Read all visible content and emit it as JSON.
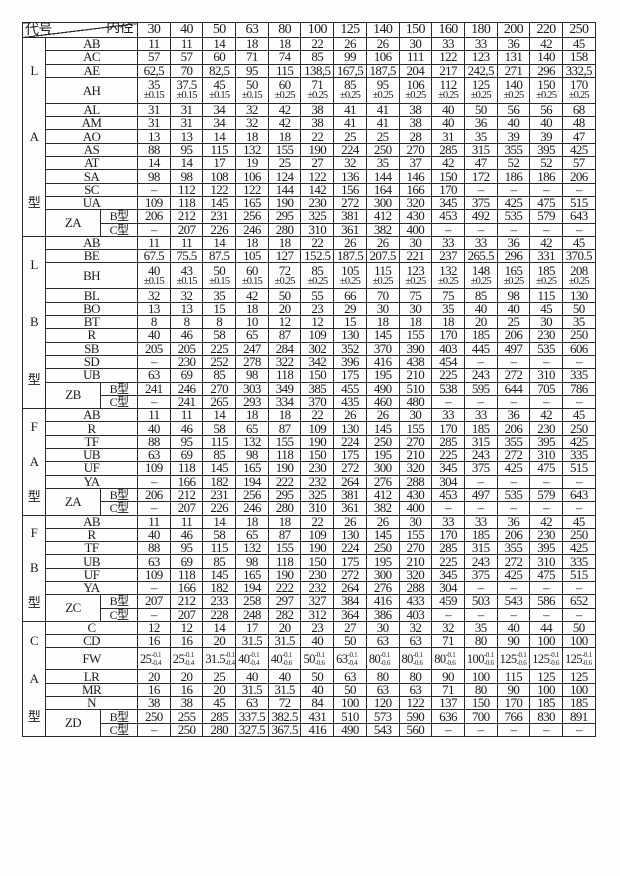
{
  "header": {
    "code_label": "代号",
    "bore_label": "内径",
    "bores": [
      "30",
      "40",
      "50",
      "63",
      "80",
      "100",
      "125",
      "140",
      "150",
      "160",
      "180",
      "200",
      "220",
      "250"
    ]
  },
  "sections": [
    {
      "group_label": [
        "L",
        "A",
        "型"
      ],
      "rows": [
        {
          "code": "AB",
          "values": [
            "11",
            "11",
            "14",
            "18",
            "18",
            "22",
            "26",
            "26",
            "30",
            "33",
            "33",
            "36",
            "42",
            "45"
          ]
        },
        {
          "code": "AC",
          "values": [
            "57",
            "57",
            "60",
            "71",
            "74",
            "85",
            "99",
            "106",
            "111",
            "122",
            "123",
            "131",
            "140",
            "158"
          ]
        },
        {
          "code": "AE",
          "values": [
            "62,5",
            "70",
            "82,5",
            "95",
            "115",
            "138,5",
            "167,5",
            "187,5",
            "204",
            "217",
            "242,5",
            "271",
            "296",
            "332,5"
          ]
        },
        {
          "code": "AH",
          "values": [
            "35",
            "37.5",
            "45",
            "50",
            "60",
            "71",
            "85",
            "95",
            "106",
            "112",
            "125",
            "140",
            "150",
            "170"
          ],
          "tol": [
            "±0.15",
            "±0.15",
            "±0.15",
            "±0.15",
            "±0.25",
            "±0.25",
            "±0.25",
            "±0.25",
            "±0.25",
            "±0.25",
            "±0.25",
            "±0.25",
            "±0.25",
            "±0.25"
          ]
        },
        {
          "code": "AL",
          "values": [
            "31",
            "31",
            "34",
            "32",
            "42",
            "38",
            "41",
            "41",
            "38",
            "40",
            "50",
            "56",
            "56",
            "68"
          ]
        },
        {
          "code": "AM",
          "values": [
            "31",
            "31",
            "34",
            "32",
            "42",
            "38",
            "41",
            "41",
            "38",
            "40",
            "36",
            "40",
            "40",
            "48"
          ]
        },
        {
          "code": "AO",
          "values": [
            "13",
            "13",
            "14",
            "18",
            "18",
            "22",
            "25",
            "25",
            "28",
            "31",
            "35",
            "39",
            "39",
            "47"
          ]
        },
        {
          "code": "AS",
          "values": [
            "88",
            "95",
            "115",
            "132",
            "155",
            "190",
            "224",
            "250",
            "270",
            "285",
            "315",
            "355",
            "395",
            "425"
          ]
        },
        {
          "code": "AT",
          "values": [
            "14",
            "14",
            "17",
            "19",
            "25",
            "27",
            "32",
            "35",
            "37",
            "42",
            "47",
            "52",
            "52",
            "57"
          ]
        },
        {
          "code": "SA",
          "values": [
            "98",
            "98",
            "108",
            "106",
            "124",
            "122",
            "136",
            "144",
            "146",
            "150",
            "172",
            "186",
            "186",
            "206"
          ]
        },
        {
          "code": "SC",
          "values": [
            "–",
            "112",
            "122",
            "122",
            "144",
            "142",
            "156",
            "164",
            "166",
            "170",
            "–",
            "–",
            "–",
            "–"
          ]
        },
        {
          "code": "UA",
          "values": [
            "109",
            "118",
            "145",
            "165",
            "190",
            "230",
            "272",
            "300",
            "320",
            "345",
            "375",
            "425",
            "475",
            "515"
          ]
        },
        {
          "code": "ZA",
          "sub": "B型",
          "values": [
            "206",
            "212",
            "231",
            "256",
            "295",
            "325",
            "381",
            "412",
            "430",
            "453",
            "492",
            "535",
            "579",
            "643"
          ]
        },
        {
          "code": "ZA",
          "sub": "C型",
          "values": [
            "–",
            "207",
            "226",
            "246",
            "280",
            "310",
            "361",
            "382",
            "400",
            "–",
            "–",
            "–",
            "–",
            "–"
          ]
        }
      ]
    },
    {
      "group_label": [
        "L",
        "B",
        "型"
      ],
      "rows": [
        {
          "code": "AB",
          "values": [
            "11",
            "11",
            "14",
            "18",
            "18",
            "22",
            "26",
            "26",
            "30",
            "33",
            "33",
            "36",
            "42",
            "45"
          ]
        },
        {
          "code": "BE",
          "values": [
            "67.5",
            "75.5",
            "87.5",
            "105",
            "127",
            "152.5",
            "187.5",
            "207.5",
            "221",
            "237",
            "265.5",
            "296",
            "331",
            "370.5"
          ]
        },
        {
          "code": "BH",
          "values": [
            "40",
            "43",
            "50",
            "60",
            "72",
            "85",
            "105",
            "115",
            "123",
            "132",
            "148",
            "165",
            "185",
            "208"
          ],
          "tol": [
            "±0.15",
            "±0.15",
            "±0.15",
            "±0.15",
            "±0.25",
            "±0.25",
            "±0.25",
            "±0.25",
            "±0.25",
            "±0.25",
            "±0.25",
            "±0.25",
            "±0.25",
            "±0.25"
          ]
        },
        {
          "code": "BL",
          "values": [
            "32",
            "32",
            "35",
            "42",
            "50",
            "55",
            "66",
            "70",
            "75",
            "75",
            "85",
            "98",
            "115",
            "130"
          ]
        },
        {
          "code": "BO",
          "values": [
            "13",
            "13",
            "15",
            "18",
            "20",
            "23",
            "29",
            "30",
            "30",
            "35",
            "40",
            "40",
            "45",
            "50"
          ]
        },
        {
          "code": "BT",
          "values": [
            "8",
            "8",
            "8",
            "10",
            "12",
            "12",
            "15",
            "18",
            "18",
            "18",
            "20",
            "25",
            "30",
            "35"
          ]
        },
        {
          "code": "R",
          "values": [
            "40",
            "46",
            "58",
            "65",
            "87",
            "109",
            "130",
            "145",
            "155",
            "170",
            "185",
            "206",
            "230",
            "250"
          ]
        },
        {
          "code": "SB",
          "values": [
            "205",
            "205",
            "225",
            "247",
            "284",
            "302",
            "352",
            "370",
            "390",
            "403",
            "445",
            "497",
            "535",
            "606"
          ]
        },
        {
          "code": "SD",
          "values": [
            "–",
            "230",
            "252",
            "278",
            "322",
            "342",
            "396",
            "416",
            "438",
            "454",
            "–",
            "–",
            "–",
            "–"
          ]
        },
        {
          "code": "UB",
          "values": [
            "63",
            "69",
            "85",
            "98",
            "118",
            "150",
            "175",
            "195",
            "210",
            "225",
            "243",
            "272",
            "310",
            "335"
          ]
        },
        {
          "code": "ZB",
          "sub": "B型",
          "values": [
            "241",
            "246",
            "270",
            "303",
            "349",
            "385",
            "455",
            "490",
            "510",
            "538",
            "595",
            "644",
            "705",
            "786"
          ]
        },
        {
          "code": "ZB",
          "sub": "C型",
          "values": [
            "–",
            "241",
            "265",
            "293",
            "334",
            "370",
            "435",
            "460",
            "480",
            "–",
            "–",
            "–",
            "–",
            "–"
          ]
        }
      ]
    },
    {
      "group_label": [
        "F",
        "A",
        "型"
      ],
      "rows": [
        {
          "code": "AB",
          "values": [
            "11",
            "11",
            "14",
            "18",
            "18",
            "22",
            "26",
            "26",
            "30",
            "33",
            "33",
            "36",
            "42",
            "45"
          ]
        },
        {
          "code": "R",
          "values": [
            "40",
            "46",
            "58",
            "65",
            "87",
            "109",
            "130",
            "145",
            "155",
            "170",
            "185",
            "206",
            "230",
            "250"
          ]
        },
        {
          "code": "TF",
          "values": [
            "88",
            "95",
            "115",
            "132",
            "155",
            "190",
            "224",
            "250",
            "270",
            "285",
            "315",
            "355",
            "395",
            "425"
          ]
        },
        {
          "code": "UB",
          "values": [
            "63",
            "69",
            "85",
            "98",
            "118",
            "150",
            "175",
            "195",
            "210",
            "225",
            "243",
            "272",
            "310",
            "335"
          ]
        },
        {
          "code": "UF",
          "values": [
            "109",
            "118",
            "145",
            "165",
            "190",
            "230",
            "272",
            "300",
            "320",
            "345",
            "375",
            "425",
            "475",
            "515"
          ]
        },
        {
          "code": "YA",
          "values": [
            "–",
            "166",
            "182",
            "194",
            "222",
            "232",
            "264",
            "276",
            "288",
            "304",
            "–",
            "–",
            "–",
            "–"
          ]
        },
        {
          "code": "ZA",
          "sub": "B型",
          "values": [
            "206",
            "212",
            "231",
            "256",
            "295",
            "325",
            "381",
            "412",
            "430",
            "453",
            "497",
            "535",
            "579",
            "643"
          ]
        },
        {
          "code": "ZA",
          "sub": "C型",
          "values": [
            "–",
            "207",
            "226",
            "246",
            "280",
            "310",
            "361",
            "382",
            "400",
            "–",
            "–",
            "–",
            "–",
            "–"
          ]
        }
      ]
    },
    {
      "group_label": [
        "F",
        "B",
        "型"
      ],
      "rows": [
        {
          "code": "AB",
          "values": [
            "11",
            "11",
            "14",
            "18",
            "18",
            "22",
            "26",
            "26",
            "30",
            "33",
            "33",
            "36",
            "42",
            "45"
          ]
        },
        {
          "code": "R",
          "values": [
            "40",
            "46",
            "58",
            "65",
            "87",
            "109",
            "130",
            "145",
            "155",
            "170",
            "185",
            "206",
            "230",
            "250"
          ]
        },
        {
          "code": "TF",
          "values": [
            "88",
            "95",
            "115",
            "132",
            "155",
            "190",
            "224",
            "250",
            "270",
            "285",
            "315",
            "355",
            "395",
            "425"
          ]
        },
        {
          "code": "UB",
          "values": [
            "63",
            "69",
            "85",
            "98",
            "118",
            "150",
            "175",
            "195",
            "210",
            "225",
            "243",
            "272",
            "310",
            "335"
          ]
        },
        {
          "code": "UF",
          "values": [
            "109",
            "118",
            "145",
            "165",
            "190",
            "230",
            "272",
            "300",
            "320",
            "345",
            "375",
            "425",
            "475",
            "515"
          ]
        },
        {
          "code": "YA",
          "values": [
            "–",
            "166",
            "182",
            "194",
            "222",
            "232",
            "264",
            "276",
            "288",
            "304",
            "–",
            "–",
            "–",
            "–"
          ]
        },
        {
          "code": "ZC",
          "sub": "B型",
          "values": [
            "207",
            "212",
            "233",
            "258",
            "297",
            "327",
            "384",
            "416",
            "433",
            "459",
            "503",
            "543",
            "586",
            "652"
          ]
        },
        {
          "code": "ZC",
          "sub": "C型",
          "values": [
            "–",
            "207",
            "228",
            "248",
            "282",
            "312",
            "364",
            "386",
            "403",
            "–",
            "–",
            "–",
            "–",
            "–"
          ]
        }
      ]
    },
    {
      "group_label": [
        "C",
        "A",
        "型"
      ],
      "rows": [
        {
          "code": "C",
          "values": [
            "12",
            "12",
            "14",
            "17",
            "20",
            "23",
            "27",
            "30",
            "32",
            "32",
            "35",
            "40",
            "44",
            "50"
          ]
        },
        {
          "code": "CD",
          "values": [
            "16",
            "16",
            "20",
            "31.5",
            "31.5",
            "40",
            "50",
            "63",
            "63",
            "71",
            "80",
            "90",
            "100",
            "100"
          ]
        },
        {
          "code": "FW",
          "values": [
            "25",
            "25",
            "31.5",
            "40",
            "40",
            "50",
            "63",
            "80",
            "80",
            "80",
            "100",
            "125",
            "125",
            "125"
          ],
          "upper": [
            "-0.1",
            "-0.1",
            "-0.1",
            "-0.1",
            "-0.1",
            "-0.1",
            "-0.1",
            "-0.1",
            "-0.1",
            "-0.1",
            "-0.1",
            "-0.1",
            "-0.1",
            "-0.1"
          ],
          "lower": [
            "-0.4",
            "-0.4",
            "-0.4",
            "-0.4",
            "-0.6",
            "-0.6",
            "-0.4",
            "-0.6",
            "-0.6",
            "-0.6",
            "-0.6",
            "-0.6",
            "-0.6",
            "-0.6"
          ]
        },
        {
          "code": "LR",
          "values": [
            "20",
            "20",
            "25",
            "40",
            "40",
            "50",
            "63",
            "80",
            "80",
            "90",
            "100",
            "115",
            "125",
            "125"
          ]
        },
        {
          "code": "MR",
          "values": [
            "16",
            "16",
            "20",
            "31.5",
            "31.5",
            "40",
            "50",
            "63",
            "63",
            "71",
            "80",
            "90",
            "100",
            "100"
          ]
        },
        {
          "code": "N",
          "values": [
            "38",
            "38",
            "45",
            "63",
            "72",
            "84",
            "100",
            "120",
            "122",
            "137",
            "150",
            "170",
            "185",
            "185"
          ]
        },
        {
          "code": "ZD",
          "sub": "B型",
          "values": [
            "250",
            "255",
            "285",
            "337.5",
            "382.5",
            "431",
            "510",
            "573",
            "590",
            "636",
            "700",
            "766",
            "830",
            "891"
          ]
        },
        {
          "code": "ZD",
          "sub": "C型",
          "values": [
            "–",
            "250",
            "280",
            "327.5",
            "367.5",
            "416",
            "490",
            "543",
            "560",
            "–",
            "–",
            "–",
            "–",
            "–"
          ]
        }
      ]
    }
  ]
}
